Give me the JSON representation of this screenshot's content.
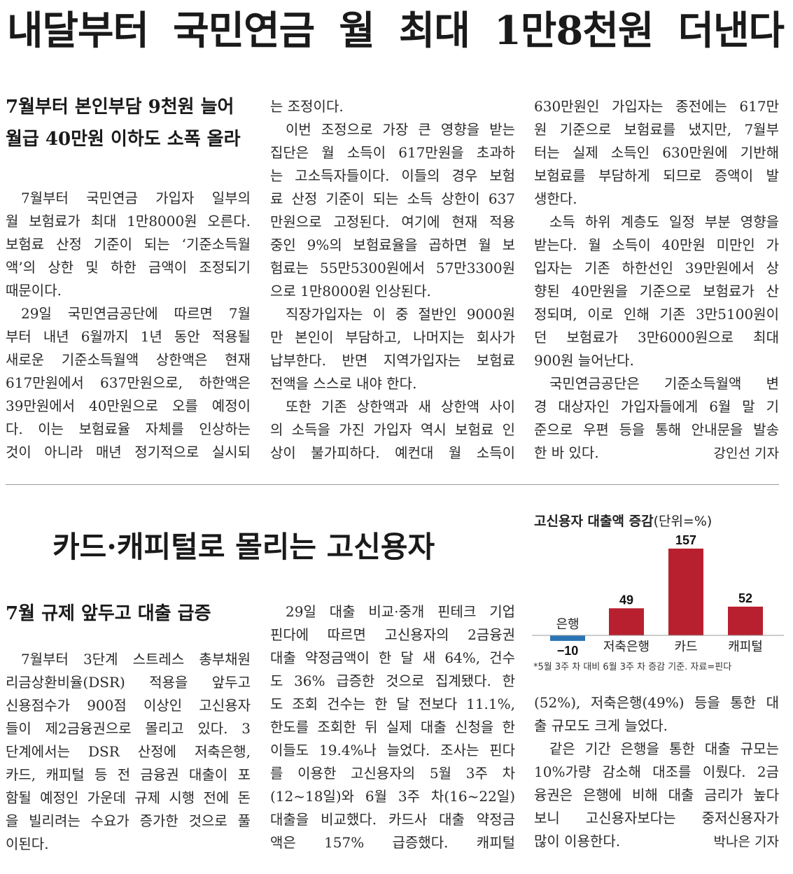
{
  "article1": {
    "headline": "내달부터 국민연금 월 최대 1만8천원 더낸다",
    "subheads": [
      "7월부터 본인부담 9천원 늘어",
      "월급 40만원 이하도 소폭 올라"
    ],
    "columns": [
      [
        [
          "7월부터 국민연금 가입자 일부의",
          "월 보험료가 최대 1만8000원 오른다.",
          "보험료 산정 기준이 되는 ‘기준소득월",
          "액’의 상한 및 하한 금액이 조정되기",
          "때문이다."
        ],
        [
          "29일 국민연금공단에 따르면 7월",
          "부터 내년 6월까지 1년 동안 적용될",
          "새로운 기준소득월액 상한액은 현재",
          "617만원에서 637만원으로, 하한액은",
          "39만원에서 40만원으로 오를 예정이",
          "다. 이는 보험료율 자체를 인상하는",
          "것이 아니라 매년 정기적으로 실시되"
        ]
      ],
      [
        [
          "는 조정이다."
        ],
        [
          "이번 조정으로 가장 큰 영향을 받는",
          "집단은 월 소득이 617만원을 초과하",
          "는 고소득자들이다. 이들의 경우 보험",
          "료 산정 기준이 되는 소득 상한이 637",
          "만원으로 고정된다. 여기에 현재 적용",
          "중인 9%의 보험료율을 곱하면 월 보",
          "험료는 55만5300원에서 57만3300원",
          "으로 1만8000원 인상된다."
        ],
        [
          "직장가입자는 이 중 절반인 9000원",
          "만 본인이 부담하고, 나머지는 회사가",
          "납부한다. 반면 지역가입자는 보험료",
          "전액을 스스로 내야 한다."
        ],
        [
          "또한 기존 상한액과 새 상한액 사이",
          "의 소득을 가진 가입자 역시 보험료 인",
          "상이 불가피하다. 예컨대 월 소득이"
        ]
      ],
      [
        [
          "630만원인 가입자는 종전에는 617만",
          "원 기준으로 보험료를 냈지만, 7월부",
          "터는 실제 소득인 630만원에 기반해",
          "보험료를 부담하게 되므로 증액이 발",
          "생한다."
        ],
        [
          "소득 하위 계층도 일정 부분 영향을",
          "받는다. 월 소득이 40만원 미만인 가",
          "입자는 기존 하한선인 39만원에서 상",
          "향된 40만원을 기준으로 보험료가 산",
          "정되며, 이로 인해 기존 3만5100원이",
          "던 보험료가 3만6000원으로 최대",
          "900원 늘어난다."
        ],
        [
          "국민연금공단은 기준소득월액 변",
          "경 대상자인 가입자들에게 6월 말 기",
          "준으로 우편 등을 통해 안내문을 발송",
          "한 바 있다."
        ]
      ]
    ],
    "byline": "강인선 기자"
  },
  "article2": {
    "headline": "카드·캐피털로 몰리는 고신용자",
    "subhead": "7월 규제 앞두고 대출 급증",
    "columns": [
      [
        [
          "7월부터 3단계 스트레스 총부채원",
          "리금상환비율(DSR) 적용을 앞두고",
          "신용점수가 900점 이상인 고신용자",
          "들이 제2금융권으로 몰리고 있다. 3",
          "단계에서는 DSR 산정에 저축은행,",
          "카드, 캐피털 등 전 금융권 대출이 포",
          "함될 예정인 가운데 규제 시행 전에 돈",
          "을 빌리려는 수요가 증가한 것으로 풀",
          "이된다."
        ]
      ],
      [
        [
          "29일 대출 비교·중개 핀테크 기업",
          "핀다에 따르면 고신용자의 2금융권",
          "대출 약정금액이 한 달 새 64%, 건수",
          "도 36% 급증한 것으로 집계됐다. 한",
          "도 조회 건수는 한 달 전보다 11.1%,",
          "한도를 조회한 뒤 실제 대출 신청을 한",
          "이들도 19.4%나 늘었다. 조사는 핀다",
          "를 이용한 고신용자의 5월 3주 차",
          "(12~18일)와 6월 3주 차(16~22일)",
          "대출을 비교했다. 카드사 대출 약정금",
          "액은 157% 급증했다. 캐피털"
        ]
      ],
      [
        [
          "(52%), 저축은행(49%) 등을 통한 대",
          "출 규모도 크게 늘었다."
        ],
        [
          "같은 기간 은행을 통한 대출 규모는",
          "10%가량 감소해 대조를 이뤘다. 2금",
          "융권은 은행에 비해 대출 금리가 높다",
          "보니 고신용자보다는 중저신용자가",
          "많이 이용한다."
        ]
      ]
    ],
    "byline": "박나은 기자"
  },
  "chart_data": {
    "type": "bar",
    "title": "고신용자 대출액 증감",
    "unit": "(단위=%)",
    "categories": [
      "은행",
      "저축은행",
      "카드",
      "캐피털"
    ],
    "values": [
      -10,
      49,
      157,
      52
    ],
    "value_labels": [
      "−10",
      "49",
      "157",
      "52"
    ],
    "colors": [
      "#2a74b5",
      "#b9202f",
      "#b9202f",
      "#b9202f"
    ],
    "note": "*5월 3주 차 대비 6월 3주 차 증감 기준. 자료=핀다"
  }
}
